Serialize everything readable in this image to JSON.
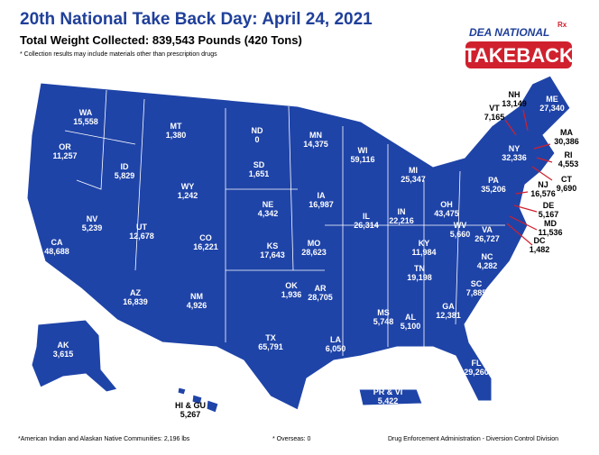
{
  "header": {
    "title": "20th National Take Back Day: April 24, 2021",
    "subtitle": "Total Weight Collected: 839,543 Pounds (420 Tons)",
    "note": "* Collection results may include materials other than prescription drugs"
  },
  "logo": {
    "top": "DEA NATIONAL",
    "rx": "Rx",
    "main": "TAKEBACK"
  },
  "states": [
    {
      "name": "WA",
      "value": "15,558"
    },
    {
      "name": "OR",
      "value": "11,257"
    },
    {
      "name": "CA",
      "value": "48,688"
    },
    {
      "name": "NV",
      "value": "5,239"
    },
    {
      "name": "ID",
      "value": "5,829"
    },
    {
      "name": "MT",
      "value": "1,380"
    },
    {
      "name": "WY",
      "value": "1,242"
    },
    {
      "name": "UT",
      "value": "12,678"
    },
    {
      "name": "AZ",
      "value": "16,839"
    },
    {
      "name": "CO",
      "value": "16,221"
    },
    {
      "name": "NM",
      "value": "4,926"
    },
    {
      "name": "ND",
      "value": "0"
    },
    {
      "name": "SD",
      "value": "1,651"
    },
    {
      "name": "NE",
      "value": "4,342"
    },
    {
      "name": "KS",
      "value": "17,643"
    },
    {
      "name": "OK",
      "value": "1,936"
    },
    {
      "name": "TX",
      "value": "65,791"
    },
    {
      "name": "MN",
      "value": "14,375"
    },
    {
      "name": "IA",
      "value": "16,987"
    },
    {
      "name": "MO",
      "value": "28,623"
    },
    {
      "name": "AR",
      "value": "28,705"
    },
    {
      "name": "LA",
      "value": "6,050"
    },
    {
      "name": "WI",
      "value": "59,116"
    },
    {
      "name": "IL",
      "value": "26,314"
    },
    {
      "name": "MI",
      "value": "25,347"
    },
    {
      "name": "IN",
      "value": "22,216"
    },
    {
      "name": "OH",
      "value": "43,475"
    },
    {
      "name": "KY",
      "value": "11,984"
    },
    {
      "name": "TN",
      "value": "19,198"
    },
    {
      "name": "MS",
      "value": "5,748"
    },
    {
      "name": "AL",
      "value": "5,100"
    },
    {
      "name": "GA",
      "value": "12,381"
    },
    {
      "name": "FL",
      "value": "29,260"
    },
    {
      "name": "SC",
      "value": "7,885"
    },
    {
      "name": "NC",
      "value": "4,282"
    },
    {
      "name": "VA",
      "value": "26,727"
    },
    {
      "name": "WV",
      "value": "5,660"
    },
    {
      "name": "PA",
      "value": "35,206"
    },
    {
      "name": "NY",
      "value": "32,336"
    },
    {
      "name": "VT",
      "value": "7,165"
    },
    {
      "name": "NH",
      "value": "13,149"
    },
    {
      "name": "ME",
      "value": "27,340"
    },
    {
      "name": "MA",
      "value": "30,386"
    },
    {
      "name": "RI",
      "value": "4,553"
    },
    {
      "name": "CT",
      "value": "9,690"
    },
    {
      "name": "NJ",
      "value": "16,576"
    },
    {
      "name": "DE",
      "value": "5,167"
    },
    {
      "name": "MD",
      "value": "11,536"
    },
    {
      "name": "DC",
      "value": "1,482"
    },
    {
      "name": "AK",
      "value": "3,615"
    },
    {
      "name": "HI & GU",
      "value": "5,267"
    },
    {
      "name": "PR & VI",
      "value": "5,422"
    }
  ],
  "footer": {
    "tribal": "*American Indian and Alaskan Native Communities: 2,196 lbs",
    "overseas": "* Overseas: 0",
    "agency": "Drug Enforcement Administration - Diversion Control Division"
  }
}
